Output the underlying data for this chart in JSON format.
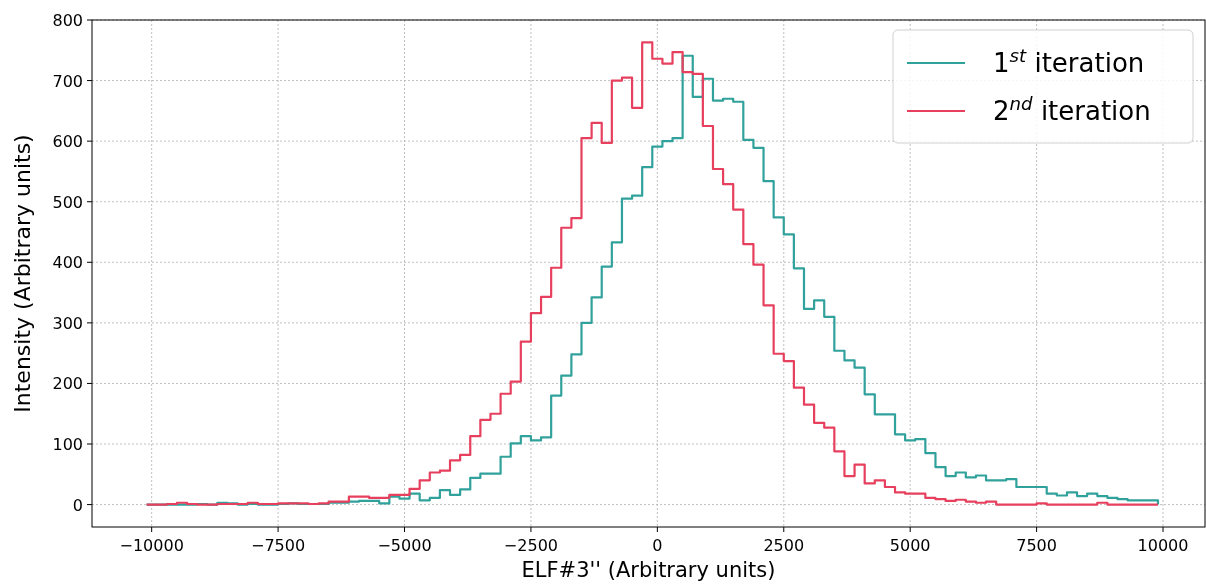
{
  "chart_data": {
    "type": "histogram",
    "xlabel": "ELF#3'' (Arbitrary units)",
    "ylabel": "Intensity (Arbitrary units)",
    "bins": [
      -10100,
      -9900,
      -9700,
      -9500,
      -9300,
      -9100,
      -8900,
      -8700,
      -8500,
      -8300,
      -8100,
      -7900,
      -7700,
      -7500,
      -7300,
      -7100,
      -6900,
      -6700,
      -6500,
      -6300,
      -6100,
      -5900,
      -5700,
      -5500,
      -5300,
      -5100,
      -4900,
      -4700,
      -4500,
      -4300,
      -4100,
      -3900,
      -3700,
      -3500,
      -3300,
      -3100,
      -2900,
      -2700,
      -2500,
      -2300,
      -2100,
      -1900,
      -1700,
      -1500,
      -1300,
      -1100,
      -900,
      -700,
      -500,
      -300,
      -100,
      100,
      300,
      500,
      700,
      900,
      1100,
      1300,
      1500,
      1700,
      1900,
      2100,
      2300,
      2500,
      2700,
      2900,
      3100,
      3300,
      3500,
      3700,
      3900,
      4100,
      4300,
      4500,
      4700,
      4900,
      5100,
      5300,
      5500,
      5700,
      5900,
      6100,
      6300,
      6500,
      6700,
      6900,
      7100,
      7300,
      7500,
      7700,
      7900,
      8100,
      8300,
      8500,
      8700,
      8900,
      9100,
      9300,
      9500,
      9700,
      9900
    ],
    "series": [
      {
        "name": "1$^{st}$ iteration",
        "color": "#31a19c",
        "values": [
          0,
          0,
          0,
          0,
          0,
          1,
          0,
          3,
          2,
          0,
          1,
          0,
          0,
          1,
          2,
          1,
          1,
          1,
          3,
          3,
          5,
          6,
          6,
          2,
          13,
          10,
          18,
          7,
          11,
          24,
          16,
          25,
          44,
          51,
          51,
          79,
          101,
          113,
          106,
          111,
          180,
          213,
          248,
          300,
          342,
          393,
          433,
          505,
          510,
          557,
          591,
          600,
          605,
          741,
          673,
          703,
          667,
          670,
          665,
          602,
          589,
          534,
          474,
          446,
          390,
          323,
          337,
          310,
          254,
          238,
          226,
          182,
          149,
          149,
          116,
          106,
          108,
          85,
          62,
          47,
          53,
          45,
          48,
          40,
          40,
          42,
          29,
          29,
          29,
          18,
          15,
          20,
          14,
          18,
          14,
          11,
          9,
          7,
          7,
          7
        ]
      },
      {
        "name": "2$^{nd}$ iteration",
        "color": "#e6405e",
        "values": [
          0,
          0,
          1,
          3,
          1,
          0,
          0,
          1,
          1,
          1,
          3,
          1,
          1,
          2,
          2,
          2,
          1,
          2,
          5,
          5,
          13,
          13,
          11,
          11,
          16,
          16,
          26,
          40,
          53,
          56,
          73,
          82,
          113,
          140,
          150,
          183,
          203,
          269,
          316,
          343,
          391,
          457,
          473,
          605,
          630,
          597,
          700,
          705,
          655,
          763,
          736,
          728,
          747,
          714,
          711,
          625,
          554,
          529,
          487,
          430,
          396,
          329,
          249,
          237,
          193,
          165,
          135,
          127,
          88,
          47,
          66,
          35,
          40,
          29,
          20,
          18,
          18,
          11,
          9,
          6,
          8,
          5,
          3,
          5,
          0,
          0,
          0,
          0,
          2,
          0,
          0,
          0,
          0,
          0,
          3,
          0,
          0,
          0,
          0,
          0
        ]
      }
    ],
    "xlim": [
      -11180,
      10830
    ],
    "ylim": [
      -37,
      800
    ],
    "xticks": [
      {
        "value": -10000,
        "label": "−10000"
      },
      {
        "value": -7500,
        "label": "−7500"
      },
      {
        "value": -5000,
        "label": "−5000"
      },
      {
        "value": -2500,
        "label": "−2500"
      },
      0,
      2500,
      5000,
      7500,
      10000
    ],
    "yticks": [
      0,
      100,
      200,
      300,
      400,
      500,
      600,
      700,
      800
    ],
    "grid": true,
    "legend": "top right"
  }
}
